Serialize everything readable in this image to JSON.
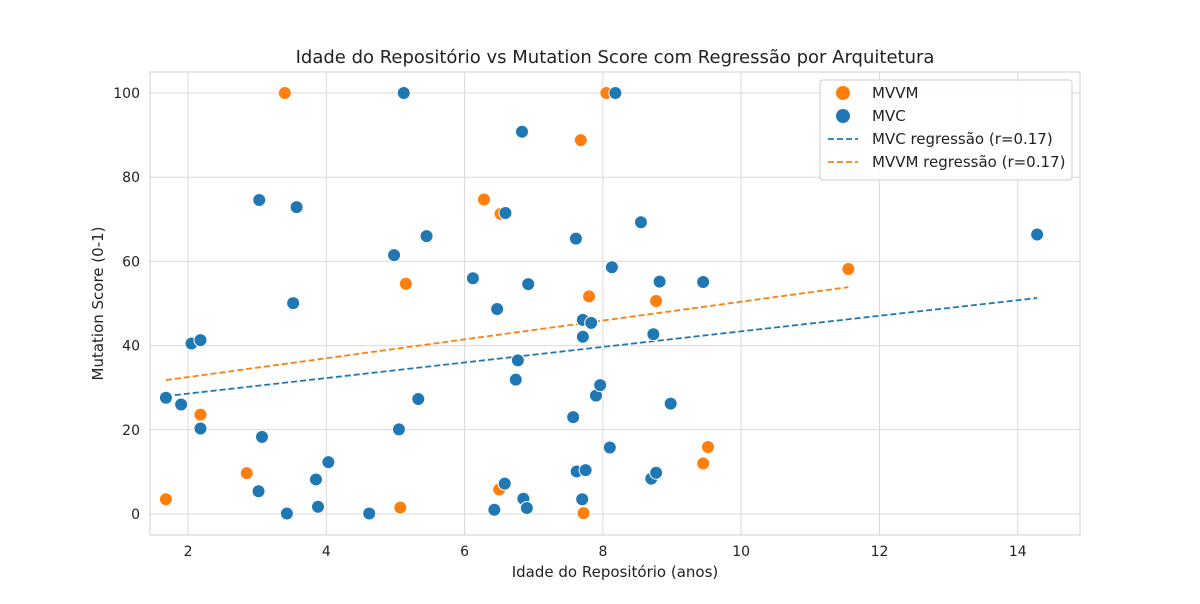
{
  "chart_data": {
    "type": "scatter",
    "title": "Idade do Repositório vs Mutation Score com Regressão por Arquitetura",
    "xlabel": "Idade do Repositório (anos)",
    "ylabel": "Mutation Score (0-1)",
    "xlim": [
      1.45,
      14.9
    ],
    "ylim": [
      -5,
      105
    ],
    "xticks": [
      2,
      4,
      6,
      8,
      10,
      12,
      14
    ],
    "yticks": [
      0,
      20,
      40,
      60,
      80,
      100
    ],
    "grid": true,
    "legend_position": "top-right",
    "colors": {
      "MVVM": "#ff7f0e",
      "MVC": "#1f77b4"
    },
    "series": [
      {
        "name": "MVVM",
        "points": [
          [
            1.68,
            3.5
          ],
          [
            2.18,
            23.6
          ],
          [
            2.85,
            9.7
          ],
          [
            3.4,
            100.0
          ],
          [
            5.07,
            1.5
          ],
          [
            5.15,
            54.7
          ],
          [
            6.28,
            74.7
          ],
          [
            6.5,
            5.8
          ],
          [
            6.52,
            71.3
          ],
          [
            7.68,
            88.8
          ],
          [
            7.72,
            0.2
          ],
          [
            7.8,
            51.7
          ],
          [
            8.05,
            100.0
          ],
          [
            8.77,
            50.6
          ],
          [
            9.45,
            12.0
          ],
          [
            9.52,
            15.9
          ],
          [
            11.55,
            58.2
          ]
        ]
      },
      {
        "name": "MVC",
        "points": [
          [
            1.68,
            27.6
          ],
          [
            1.9,
            26.0
          ],
          [
            2.05,
            40.5
          ],
          [
            2.18,
            41.3
          ],
          [
            2.18,
            20.3
          ],
          [
            3.02,
            5.4
          ],
          [
            3.03,
            74.6
          ],
          [
            3.07,
            18.3
          ],
          [
            3.43,
            0.1
          ],
          [
            3.52,
            50.1
          ],
          [
            3.57,
            72.9
          ],
          [
            3.85,
            8.2
          ],
          [
            3.88,
            1.7
          ],
          [
            4.03,
            12.3
          ],
          [
            4.62,
            0.1
          ],
          [
            4.98,
            61.5
          ],
          [
            5.05,
            20.1
          ],
          [
            5.12,
            100.0
          ],
          [
            5.33,
            27.3
          ],
          [
            5.45,
            66.0
          ],
          [
            6.12,
            56.0
          ],
          [
            6.43,
            1.0
          ],
          [
            6.47,
            48.7
          ],
          [
            6.58,
            7.2
          ],
          [
            6.59,
            71.5
          ],
          [
            6.74,
            31.9
          ],
          [
            6.77,
            36.5
          ],
          [
            6.83,
            90.8
          ],
          [
            6.85,
            3.6
          ],
          [
            6.9,
            1.4
          ],
          [
            6.92,
            54.6
          ],
          [
            7.57,
            23.0
          ],
          [
            7.61,
            65.4
          ],
          [
            7.62,
            10.1
          ],
          [
            7.7,
            3.5
          ],
          [
            7.71,
            46.1
          ],
          [
            7.71,
            42.1
          ],
          [
            7.75,
            10.4
          ],
          [
            7.83,
            45.4
          ],
          [
            7.9,
            28.1
          ],
          [
            7.96,
            30.6
          ],
          [
            8.1,
            15.8
          ],
          [
            8.13,
            58.6
          ],
          [
            8.18,
            100.0
          ],
          [
            8.55,
            69.3
          ],
          [
            8.7,
            8.4
          ],
          [
            8.73,
            42.7
          ],
          [
            8.77,
            9.8
          ],
          [
            8.82,
            55.2
          ],
          [
            8.98,
            26.2
          ],
          [
            9.45,
            55.1
          ],
          [
            14.28,
            66.4
          ]
        ]
      }
    ],
    "regression_lines": [
      {
        "name": "MVC regressão (r=0.17)",
        "series": "MVC",
        "x": [
          1.68,
          14.28
        ],
        "y": [
          28.0,
          51.3
        ],
        "style": "dashed"
      },
      {
        "name": "MVVM regressão (r=0.17)",
        "series": "MVVM",
        "x": [
          1.68,
          11.55
        ],
        "y": [
          31.8,
          53.9
        ],
        "style": "dashed"
      }
    ]
  }
}
